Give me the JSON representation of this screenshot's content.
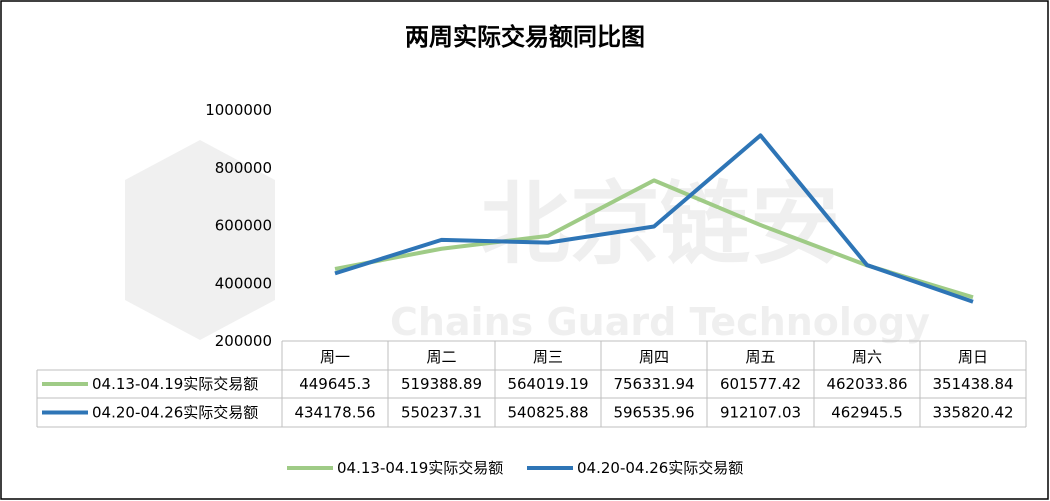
{
  "chart_data": {
    "type": "line",
    "title": "两周实际交易额同比图",
    "categories": [
      "周一",
      "周二",
      "周三",
      "周四",
      "周五",
      "周六",
      "周日"
    ],
    "series": [
      {
        "name": "04.13-04.19实际交易额",
        "color": "#9fcb86",
        "values": [
          449645.3,
          519388.89,
          564019.19,
          756331.94,
          601577.42,
          462033.86,
          351438.84
        ],
        "labels": [
          "449645.3",
          "519388.89",
          "564019.19",
          "756331.94",
          "601577.42",
          "462033.86",
          "351438.84"
        ]
      },
      {
        "name": "04.20-04.26实际交易额",
        "color": "#2e75b6",
        "values": [
          434178.56,
          550237.31,
          540825.88,
          596535.96,
          912107.03,
          462945.5,
          335820.42
        ],
        "labels": [
          "434178.56",
          "550237.31",
          "540825.88",
          "596535.96",
          "912107.03",
          "462945.5",
          "335820.42"
        ]
      }
    ],
    "ylim": [
      200000,
      1000000
    ],
    "yticks": [
      "200000",
      "400000",
      "600000",
      "800000",
      "1000000"
    ],
    "grid": false,
    "data_table": true,
    "legend": "bottom"
  },
  "watermark": {
    "cn": "北京链安",
    "en": "Chains Guard Technology"
  }
}
